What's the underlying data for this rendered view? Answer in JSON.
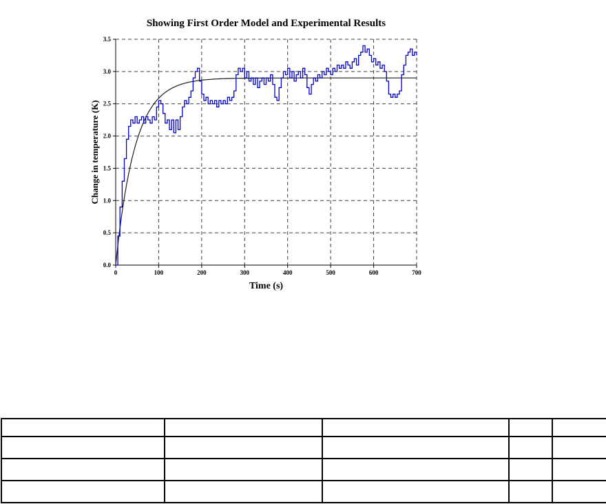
{
  "chart_data": {
    "type": "line",
    "title": "Showing First Order Model and Experimental Results",
    "xlabel": "Time (s)",
    "ylabel": "Change in temperature (K)",
    "xlim": [
      0,
      700
    ],
    "ylim": [
      0,
      3.5
    ],
    "xticks": [
      0,
      100,
      200,
      300,
      400,
      500,
      600,
      700
    ],
    "yticks": [
      0.0,
      0.5,
      1.0,
      1.5,
      2.0,
      2.5,
      3.0,
      3.5
    ],
    "grid": "dashed",
    "legend": "none",
    "series": [
      {
        "name": "First order model",
        "type": "model_first_order",
        "color": "#1a1a1a",
        "gain": 2.9,
        "tau": 45
      },
      {
        "name": "Experimental results",
        "type": "step",
        "color": "#0000cc",
        "x": [
          0,
          5,
          10,
          15,
          20,
          25,
          30,
          35,
          40,
          45,
          50,
          55,
          60,
          65,
          70,
          75,
          80,
          85,
          90,
          95,
          100,
          105,
          110,
          115,
          120,
          125,
          130,
          135,
          140,
          145,
          150,
          155,
          160,
          165,
          170,
          175,
          180,
          185,
          190,
          195,
          200,
          205,
          210,
          215,
          220,
          225,
          230,
          235,
          240,
          245,
          250,
          255,
          260,
          265,
          270,
          275,
          280,
          285,
          290,
          295,
          300,
          305,
          310,
          315,
          320,
          325,
          330,
          335,
          340,
          345,
          350,
          355,
          360,
          365,
          370,
          375,
          380,
          385,
          390,
          395,
          400,
          405,
          410,
          415,
          420,
          425,
          430,
          435,
          440,
          445,
          450,
          455,
          460,
          465,
          470,
          475,
          480,
          485,
          490,
          495,
          500,
          505,
          510,
          515,
          520,
          525,
          530,
          535,
          540,
          545,
          550,
          555,
          560,
          565,
          570,
          575,
          580,
          585,
          590,
          595,
          600,
          605,
          610,
          615,
          620,
          625,
          630,
          635,
          640,
          645,
          650,
          655,
          660,
          665,
          670,
          675,
          680,
          685,
          690,
          695,
          700
        ],
        "y": [
          0.0,
          0.45,
          0.9,
          1.3,
          1.65,
          1.95,
          2.15,
          2.25,
          2.2,
          2.3,
          2.2,
          2.25,
          2.3,
          2.2,
          2.3,
          2.25,
          2.2,
          2.3,
          2.25,
          2.45,
          2.55,
          2.5,
          2.35,
          2.2,
          2.25,
          2.1,
          2.25,
          2.05,
          2.25,
          2.1,
          2.3,
          2.45,
          2.55,
          2.5,
          2.6,
          2.7,
          2.9,
          3.0,
          3.05,
          2.85,
          2.65,
          2.55,
          2.6,
          2.5,
          2.55,
          2.5,
          2.55,
          2.45,
          2.55,
          2.5,
          2.55,
          2.5,
          2.6,
          2.55,
          2.6,
          2.7,
          2.95,
          3.05,
          3.0,
          3.05,
          2.9,
          3.0,
          2.85,
          2.9,
          2.8,
          2.9,
          2.75,
          2.85,
          2.9,
          2.8,
          2.9,
          2.85,
          2.95,
          2.8,
          2.6,
          2.55,
          2.75,
          2.9,
          3.0,
          2.95,
          3.05,
          2.9,
          3.0,
          2.85,
          2.95,
          3.0,
          2.9,
          3.05,
          2.95,
          2.75,
          2.65,
          2.8,
          2.9,
          2.85,
          2.95,
          2.9,
          3.0,
          2.95,
          3.05,
          3.0,
          2.95,
          3.05,
          3.0,
          3.1,
          3.05,
          3.1,
          3.05,
          3.15,
          3.1,
          3.05,
          3.15,
          3.2,
          3.1,
          3.25,
          3.3,
          3.4,
          3.3,
          3.35,
          3.25,
          3.15,
          3.2,
          3.1,
          3.15,
          3.05,
          3.1,
          3.0,
          2.85,
          2.65,
          2.6,
          2.65,
          2.6,
          2.65,
          2.7,
          2.95,
          3.1,
          3.25,
          3.3,
          3.35,
          3.25,
          3.3,
          3.25
        ]
      }
    ]
  },
  "table": {
    "rows": [
      [
        "",
        "",
        "",
        "",
        ""
      ],
      [
        "",
        "",
        "",
        "",
        ""
      ],
      [
        "",
        "",
        "",
        "",
        ""
      ],
      [
        "",
        "",
        "",
        "",
        ""
      ]
    ]
  },
  "colors": {
    "background": "#ffffff",
    "experimental": "#0000cc",
    "model": "#1a1a1a",
    "grid": "#3c3c3c"
  }
}
